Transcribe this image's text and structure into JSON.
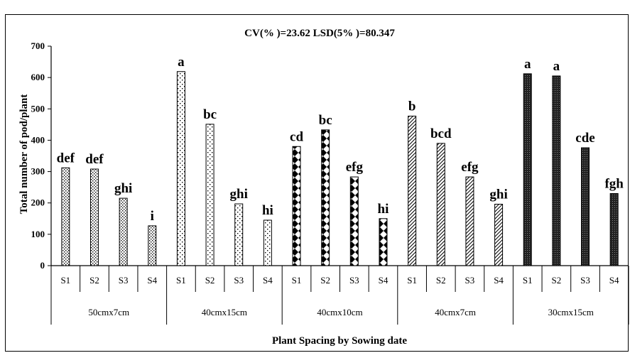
{
  "chart_data": {
    "type": "bar",
    "title": "CV(% )=23.62 LSD(5% )=80.347",
    "ylabel": "Total number of pod/plant",
    "xlabel": "Plant Spacing by Sowing date",
    "ylim": [
      0,
      700
    ],
    "yticks": [
      "0",
      "100",
      "200",
      "300",
      "400",
      "500",
      "600",
      "700"
    ],
    "grid": false,
    "groups": [
      {
        "name": "50cmx7cm",
        "pattern": "dots",
        "bars": [
          {
            "label": "S1",
            "value": 312,
            "letter": "def"
          },
          {
            "label": "S2",
            "value": 308,
            "letter": "def"
          },
          {
            "label": "S3",
            "value": 215,
            "letter": "ghi"
          },
          {
            "label": "S4",
            "value": 127,
            "letter": "i"
          }
        ]
      },
      {
        "name": "40cmx15cm",
        "pattern": "sparse-dots",
        "bars": [
          {
            "label": "S1",
            "value": 619,
            "letter": "a"
          },
          {
            "label": "S2",
            "value": 451,
            "letter": "bc"
          },
          {
            "label": "S3",
            "value": 197,
            "letter": "ghi"
          },
          {
            "label": "S4",
            "value": 145,
            "letter": "hi"
          }
        ]
      },
      {
        "name": "40cmx10cm",
        "pattern": "diamonds",
        "bars": [
          {
            "label": "S1",
            "value": 380,
            "letter": "cd"
          },
          {
            "label": "S2",
            "value": 433,
            "letter": "bc"
          },
          {
            "label": "S3",
            "value": 283,
            "letter": "efg"
          },
          {
            "label": "S4",
            "value": 150,
            "letter": "hi"
          }
        ]
      },
      {
        "name": "40cmx7cm",
        "pattern": "diagonal",
        "bars": [
          {
            "label": "S1",
            "value": 477,
            "letter": "b"
          },
          {
            "label": "S2",
            "value": 390,
            "letter": "bcd"
          },
          {
            "label": "S3",
            "value": 283,
            "letter": "efg"
          },
          {
            "label": "S4",
            "value": 196,
            "letter": "ghi"
          }
        ]
      },
      {
        "name": "30cmx15cm",
        "pattern": "dense-dots",
        "bars": [
          {
            "label": "S1",
            "value": 612,
            "letter": "a"
          },
          {
            "label": "S2",
            "value": 605,
            "letter": "a"
          },
          {
            "label": "S3",
            "value": 376,
            "letter": "cde"
          },
          {
            "label": "S4",
            "value": 230,
            "letter": "fgh"
          }
        ]
      }
    ]
  }
}
